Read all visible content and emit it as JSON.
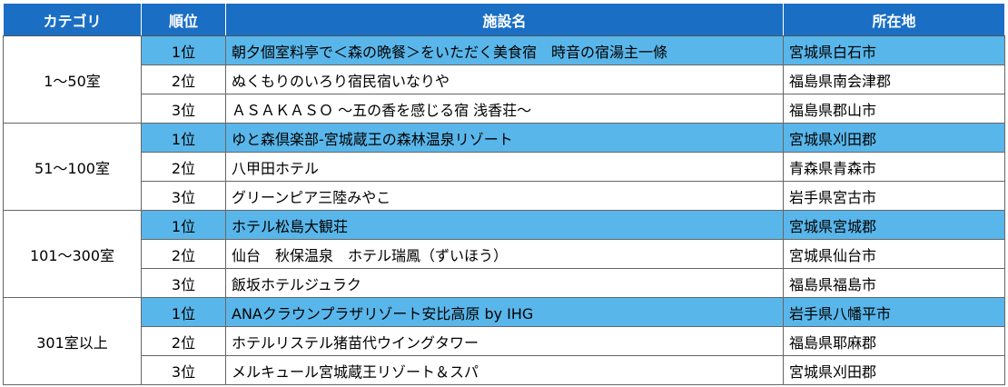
{
  "header": [
    "カテゴリ",
    "順位",
    "施設名",
    "所在地"
  ],
  "groups": [
    {
      "category": "1〜50室",
      "rows": [
        {
          "rank": "1位",
          "name": "朝夕個室料亭で＜森の晩餐＞をいただく美食宿　時音の宿湯主一條",
          "location": "宮城県白石市"
        },
        {
          "rank": "2位",
          "name": "ぬくもりのいろり宿民宿いなりや",
          "location": "福島県南会津郡"
        },
        {
          "rank": "3位",
          "name": "ＡＳＡＫＡＳＯ ～五の香を感じる宿 浅香荘～",
          "location": "福島県郡山市"
        }
      ]
    },
    {
      "category": "51〜100室",
      "rows": [
        {
          "rank": "1位",
          "name": "ゆと森倶楽部-宮城蔵王の森林温泉リゾート",
          "location": "宮城県刈田郡"
        },
        {
          "rank": "2位",
          "name": "八甲田ホテル",
          "location": "青森県青森市"
        },
        {
          "rank": "3位",
          "name": "グリーンピア三陸みやこ",
          "location": "岩手県宮古市"
        }
      ]
    },
    {
      "category": "101〜300室",
      "rows": [
        {
          "rank": "1位",
          "name": "ホテル松島大観荘",
          "location": "宮城県宮城郡"
        },
        {
          "rank": "2位",
          "name": "仙台　秋保温泉　ホテル瑞鳳（ずいほう）",
          "location": "宮城県仙台市"
        },
        {
          "rank": "3位",
          "name": "飯坂ホテルジュラク",
          "location": "福島県福島市"
        }
      ]
    },
    {
      "category": "301室以上",
      "rows": [
        {
          "rank": "1位",
          "name": "ANAクラウンプラザリゾート安比高原 by IHG",
          "location": "岩手県八幡平市"
        },
        {
          "rank": "2位",
          "name": "ホテルリステル猪苗代ウイングタワー",
          "location": "福島県耶麻郡"
        },
        {
          "rank": "3位",
          "name": "メルキュール宮城蔵王リゾート＆スパ",
          "location": "宮城県刈田郡"
        }
      ]
    }
  ]
}
